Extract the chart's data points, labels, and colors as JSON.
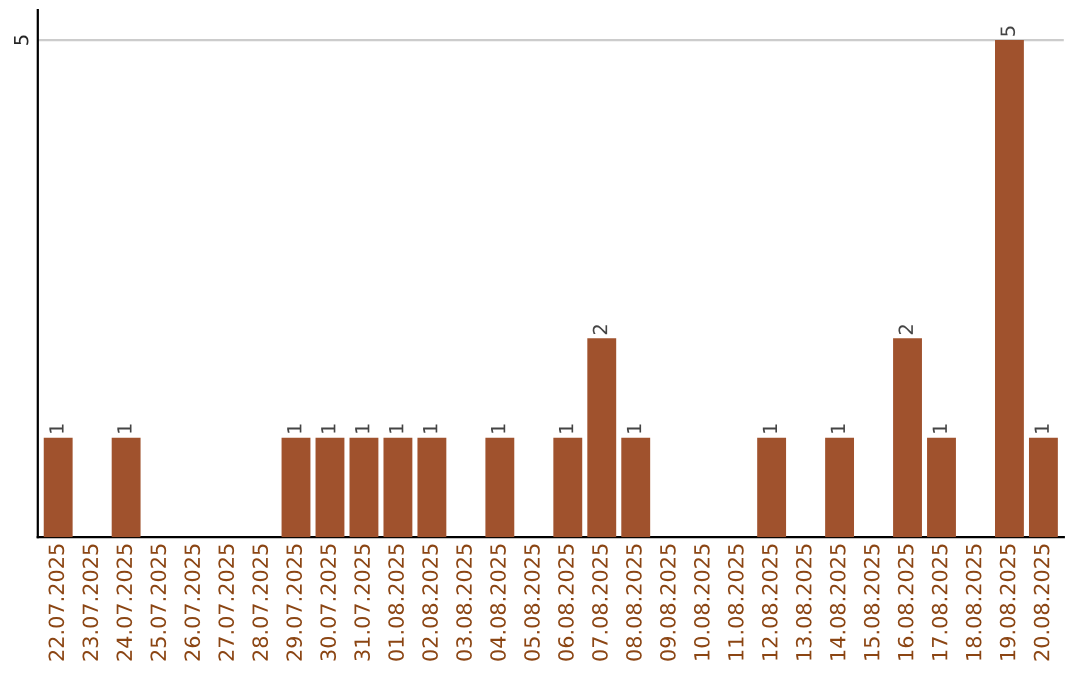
{
  "chart_data": {
    "type": "bar",
    "categories": [
      "22.07.2025",
      "23.07.2025",
      "24.07.2025",
      "25.07.2025",
      "26.07.2025",
      "27.07.2025",
      "28.07.2025",
      "29.07.2025",
      "30.07.2025",
      "31.07.2025",
      "01.08.2025",
      "02.08.2025",
      "03.08.2025",
      "04.08.2025",
      "05.08.2025",
      "06.08.2025",
      "07.08.2025",
      "08.08.2025",
      "09.08.2025",
      "10.08.2025",
      "11.08.2025",
      "12.08.2025",
      "13.08.2025",
      "14.08.2025",
      "15.08.2025",
      "16.08.2025",
      "17.08.2025",
      "18.08.2025",
      "19.08.2025",
      "20.08.2025"
    ],
    "values": [
      1,
      0,
      1,
      0,
      0,
      0,
      0,
      1,
      1,
      1,
      1,
      1,
      0,
      1,
      0,
      1,
      2,
      1,
      0,
      0,
      0,
      1,
      0,
      1,
      0,
      2,
      1,
      0,
      5,
      1
    ],
    "value_labels": [
      "1",
      null,
      "1",
      null,
      null,
      null,
      null,
      "1",
      "1",
      "1",
      "1",
      "1",
      null,
      "1",
      null,
      "1",
      "2",
      "1",
      null,
      null,
      null,
      "1",
      null,
      "1",
      null,
      "2",
      "1",
      null,
      "5",
      "1"
    ],
    "color": "#a0522d",
    "ylim": [
      0,
      5.3
    ],
    "yticks": [
      5
    ],
    "grid": "y"
  }
}
